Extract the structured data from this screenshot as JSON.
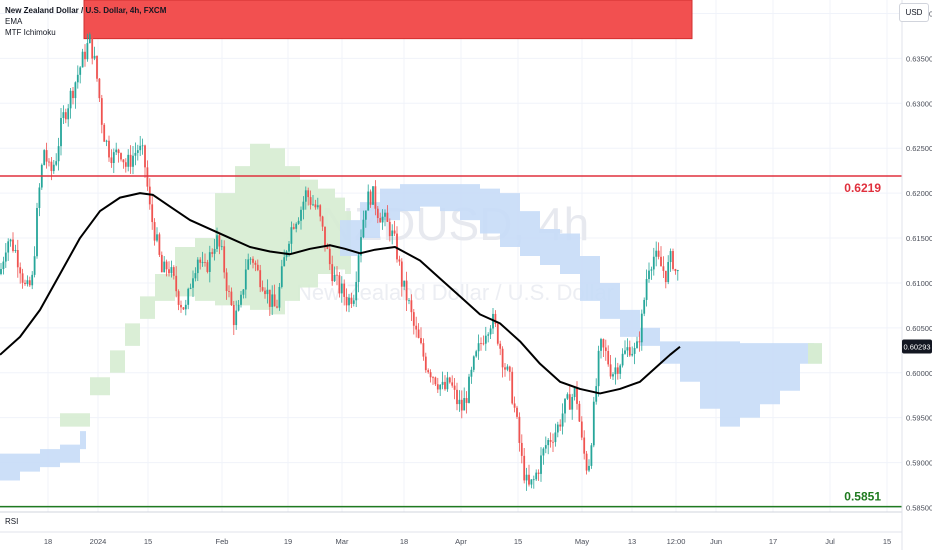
{
  "header": {
    "title": "New Zealand Dollar / U.S. Dollar, 4h, FXCM",
    "indicator_1": "EMA",
    "indicator_2": "MTF Ichimoku",
    "rsi_label": "RSI",
    "axis_currency": "USD"
  },
  "chart_data": {
    "type": "candlestick",
    "symbol_watermark": "NZDUSD, 4h",
    "description_watermark": "New Zealand Dollar / U.S. Dollar",
    "ylim": [
      0.5845,
      0.6415
    ],
    "y_ticks": [
      "0.64000",
      "0.63500",
      "0.63000",
      "0.62500",
      "0.62000",
      "0.61500",
      "0.61000",
      "0.60500",
      "0.60000",
      "0.59500",
      "0.59000",
      "0.58500"
    ],
    "x_ticks": [
      "18",
      "2024",
      "15",
      "Feb",
      "19",
      "Mar",
      "18",
      "Apr",
      "15",
      "May",
      "13",
      "12:00",
      "Jun",
      "17",
      "Jul",
      "15"
    ],
    "current_price": "0.60293",
    "levels": [
      {
        "label": "0.6219",
        "value": 0.6219,
        "color": "#e0303d"
      },
      {
        "label": "0.5851",
        "value": 0.5851,
        "color": "#1f7a1f"
      }
    ],
    "supply_zone": {
      "from": 0.6372,
      "to": 0.6415,
      "color": "#f25050"
    },
    "price_path": [
      [
        0,
        0.611
      ],
      [
        7,
        0.615
      ],
      [
        14,
        0.614
      ],
      [
        20,
        0.612
      ],
      [
        26,
        0.609
      ],
      [
        32,
        0.61
      ],
      [
        38,
        0.619
      ],
      [
        44,
        0.625
      ],
      [
        50,
        0.622
      ],
      [
        56,
        0.624
      ],
      [
        62,
        0.628
      ],
      [
        68,
        0.63
      ],
      [
        74,
        0.632
      ],
      [
        80,
        0.634
      ],
      [
        86,
        0.636
      ],
      [
        90,
        0.637
      ],
      [
        94,
        0.635
      ],
      [
        98,
        0.632
      ],
      [
        103,
        0.627
      ],
      [
        108,
        0.625
      ],
      [
        114,
        0.624
      ],
      [
        120,
        0.625
      ],
      [
        126,
        0.623
      ],
      [
        132,
        0.624
      ],
      [
        138,
        0.625
      ],
      [
        144,
        0.624
      ],
      [
        150,
        0.618
      ],
      [
        156,
        0.615
      ],
      [
        162,
        0.611
      ],
      [
        168,
        0.612
      ],
      [
        174,
        0.61
      ],
      [
        180,
        0.608
      ],
      [
        186,
        0.607
      ],
      [
        192,
        0.611
      ],
      [
        198,
        0.613
      ],
      [
        204,
        0.611
      ],
      [
        210,
        0.613
      ],
      [
        216,
        0.615
      ],
      [
        222,
        0.613
      ],
      [
        228,
        0.609
      ],
      [
        234,
        0.606
      ],
      [
        240,
        0.607
      ],
      [
        246,
        0.612
      ],
      [
        252,
        0.613
      ],
      [
        258,
        0.611
      ],
      [
        264,
        0.61
      ],
      [
        270,
        0.608
      ],
      [
        276,
        0.607
      ],
      [
        282,
        0.611
      ],
      [
        288,
        0.615
      ],
      [
        294,
        0.617
      ],
      [
        300,
        0.618
      ],
      [
        306,
        0.62
      ],
      [
        312,
        0.619
      ],
      [
        318,
        0.618
      ],
      [
        324,
        0.615
      ],
      [
        330,
        0.612
      ],
      [
        336,
        0.61
      ],
      [
        342,
        0.609
      ],
      [
        348,
        0.608
      ],
      [
        354,
        0.609
      ],
      [
        360,
        0.615
      ],
      [
        366,
        0.619
      ],
      [
        372,
        0.62
      ],
      [
        378,
        0.618
      ],
      [
        384,
        0.617
      ],
      [
        390,
        0.616
      ],
      [
        396,
        0.614
      ],
      [
        402,
        0.61
      ],
      [
        408,
        0.608
      ],
      [
        414,
        0.605
      ],
      [
        420,
        0.603
      ],
      [
        426,
        0.601
      ],
      [
        432,
        0.6
      ],
      [
        438,
        0.599
      ],
      [
        444,
        0.598
      ],
      [
        450,
        0.599
      ],
      [
        456,
        0.597
      ],
      [
        462,
        0.596
      ],
      [
        468,
        0.598
      ],
      [
        474,
        0.601
      ],
      [
        480,
        0.603
      ],
      [
        486,
        0.605
      ],
      [
        492,
        0.606
      ],
      [
        498,
        0.604
      ],
      [
        504,
        0.601
      ],
      [
        510,
        0.599
      ],
      [
        516,
        0.595
      ],
      [
        522,
        0.59
      ],
      [
        528,
        0.587
      ],
      [
        534,
        0.588
      ],
      [
        540,
        0.59
      ],
      [
        546,
        0.592
      ],
      [
        552,
        0.593
      ],
      [
        558,
        0.594
      ],
      [
        564,
        0.596
      ],
      [
        570,
        0.597
      ],
      [
        576,
        0.598
      ],
      [
        582,
        0.592
      ],
      [
        588,
        0.589
      ],
      [
        594,
        0.596
      ],
      [
        600,
        0.603
      ],
      [
        606,
        0.602
      ],
      [
        612,
        0.6
      ],
      [
        618,
        0.601
      ],
      [
        624,
        0.602
      ],
      [
        630,
        0.603
      ],
      [
        636,
        0.602
      ],
      [
        642,
        0.606
      ],
      [
        648,
        0.612
      ],
      [
        654,
        0.613
      ],
      [
        660,
        0.612
      ],
      [
        666,
        0.611
      ],
      [
        672,
        0.613
      ],
      [
        676,
        0.611
      ],
      [
        680,
        0.611
      ]
    ],
    "ema": [
      [
        0,
        0.602
      ],
      [
        20,
        0.604
      ],
      [
        40,
        0.607
      ],
      [
        60,
        0.611
      ],
      [
        80,
        0.615
      ],
      [
        100,
        0.618
      ],
      [
        120,
        0.6195
      ],
      [
        140,
        0.62
      ],
      [
        153,
        0.6198
      ],
      [
        170,
        0.6185
      ],
      [
        190,
        0.617
      ],
      [
        210,
        0.616
      ],
      [
        230,
        0.615
      ],
      [
        250,
        0.614
      ],
      [
        270,
        0.6135
      ],
      [
        290,
        0.6132
      ],
      [
        310,
        0.6138
      ],
      [
        330,
        0.6142
      ],
      [
        345,
        0.6138
      ],
      [
        360,
        0.6133
      ],
      [
        375,
        0.6137
      ],
      [
        395,
        0.614
      ],
      [
        420,
        0.6125
      ],
      [
        440,
        0.6105
      ],
      [
        460,
        0.6085
      ],
      [
        480,
        0.6065
      ],
      [
        500,
        0.6055
      ],
      [
        520,
        0.6035
      ],
      [
        540,
        0.601
      ],
      [
        560,
        0.599
      ],
      [
        580,
        0.5982
      ],
      [
        600,
        0.5977
      ],
      [
        620,
        0.5982
      ],
      [
        640,
        0.599
      ],
      [
        660,
        0.601
      ],
      [
        670,
        0.602
      ],
      [
        680,
        0.6029
      ]
    ],
    "cloud_green": [
      [
        60,
        0.594,
        0.5955
      ],
      [
        90,
        0.5975,
        0.5995
      ],
      [
        110,
        0.6,
        0.6025
      ],
      [
        125,
        0.603,
        0.6055
      ],
      [
        140,
        0.606,
        0.6085
      ],
      [
        155,
        0.608,
        0.611
      ],
      [
        175,
        0.6085,
        0.614
      ],
      [
        195,
        0.608,
        0.615
      ],
      [
        215,
        0.6075,
        0.62
      ],
      [
        235,
        0.6075,
        0.623
      ],
      [
        250,
        0.607,
        0.6255
      ],
      [
        270,
        0.6065,
        0.625
      ],
      [
        285,
        0.608,
        0.623
      ],
      [
        300,
        0.6095,
        0.6215
      ],
      [
        318,
        0.611,
        0.6205
      ],
      [
        335,
        0.6115,
        0.6195
      ],
      [
        345,
        0.611,
        0.618
      ]
    ],
    "cloud_blue": [
      [
        0,
        0.588,
        0.591
      ],
      [
        20,
        0.589,
        0.591
      ],
      [
        40,
        0.5895,
        0.5915
      ],
      [
        60,
        0.59,
        0.592
      ],
      [
        80,
        0.5915,
        0.5935
      ],
      [
        340,
        0.613,
        0.617
      ],
      [
        360,
        0.615,
        0.619
      ],
      [
        380,
        0.617,
        0.6205
      ],
      [
        400,
        0.618,
        0.621
      ],
      [
        420,
        0.6185,
        0.621
      ],
      [
        440,
        0.618,
        0.621
      ],
      [
        460,
        0.617,
        0.621
      ],
      [
        480,
        0.6155,
        0.6205
      ],
      [
        500,
        0.614,
        0.62
      ],
      [
        520,
        0.613,
        0.618
      ],
      [
        540,
        0.612,
        0.616
      ],
      [
        560,
        0.611,
        0.6155
      ],
      [
        580,
        0.608,
        0.613
      ],
      [
        600,
        0.606,
        0.61
      ],
      [
        620,
        0.604,
        0.607
      ],
      [
        640,
        0.603,
        0.605
      ],
      [
        660,
        0.601,
        0.6035
      ],
      [
        680,
        0.599,
        0.6035
      ],
      [
        700,
        0.596,
        0.6035
      ],
      [
        720,
        0.594,
        0.6035
      ],
      [
        740,
        0.595,
        0.6033
      ],
      [
        760,
        0.5965,
        0.6033
      ],
      [
        780,
        0.598,
        0.6033
      ],
      [
        800,
        0.601,
        0.6033
      ],
      [
        808,
        0.6025,
        0.6033
      ]
    ],
    "grid": true
  },
  "colors": {
    "up": "#26a69a",
    "down": "#ef5350",
    "ema": "#000000",
    "cloud_green": "#d6ecd2",
    "cloud_blue": "#c7dcf7",
    "price_badge": "#131722",
    "grid": "#f0f3fa"
  }
}
